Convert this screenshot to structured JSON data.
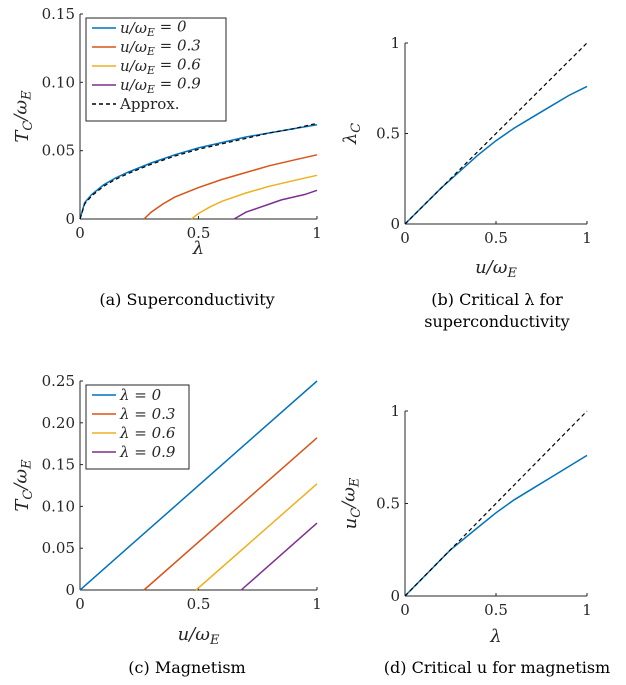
{
  "colors": {
    "blue": "#0072BD",
    "orange": "#D95319",
    "yellow": "#EDB120",
    "purple": "#7E2F8E",
    "axis": "#262626",
    "approx": "#000000"
  },
  "chart_data": [
    {
      "id": "a",
      "type": "line",
      "caption": "(a) Superconductivity",
      "xlabel": "λ",
      "ylabel": "T_C/ω_E",
      "xlim": [
        0,
        1
      ],
      "ylim": [
        0,
        0.15
      ],
      "xticks": [
        0,
        0.5,
        1
      ],
      "xtick_labels": [
        "0",
        "0.5",
        "1"
      ],
      "yticks": [
        0,
        0.05,
        0.1,
        0.15
      ],
      "ytick_labels": [
        "0",
        "0.05",
        "0.10",
        "0.15"
      ],
      "legend_position": "top-left",
      "grid": false,
      "series": [
        {
          "name": "u/ω_E = 0",
          "color": "#0072BD",
          "style": "solid",
          "x": [
            0,
            0.02,
            0.05,
            0.1,
            0.15,
            0.2,
            0.3,
            0.4,
            0.5,
            0.6,
            0.7,
            0.8,
            0.9,
            1.0
          ],
          "y": [
            0,
            0.012,
            0.018,
            0.025,
            0.03,
            0.034,
            0.041,
            0.047,
            0.052,
            0.056,
            0.06,
            0.063,
            0.066,
            0.069
          ]
        },
        {
          "name": "u/ω_E = 0.3",
          "color": "#D95319",
          "style": "solid",
          "x": [
            0.27,
            0.3,
            0.35,
            0.4,
            0.5,
            0.6,
            0.7,
            0.8,
            0.9,
            1.0
          ],
          "y": [
            0,
            0.005,
            0.011,
            0.016,
            0.023,
            0.029,
            0.034,
            0.039,
            0.043,
            0.047
          ]
        },
        {
          "name": "u/ω_E = 0.6",
          "color": "#EDB120",
          "style": "solid",
          "x": [
            0.47,
            0.5,
            0.55,
            0.6,
            0.7,
            0.8,
            0.9,
            1.0
          ],
          "y": [
            0,
            0.004,
            0.009,
            0.013,
            0.019,
            0.024,
            0.028,
            0.032
          ]
        },
        {
          "name": "u/ω_E = 0.9",
          "color": "#7E2F8E",
          "style": "solid",
          "x": [
            0.65,
            0.7,
            0.75,
            0.8,
            0.85,
            0.9,
            0.95,
            1.0
          ],
          "y": [
            0,
            0.005,
            0.008,
            0.011,
            0.014,
            0.016,
            0.018,
            0.021
          ]
        },
        {
          "name": "Approx.",
          "color": "#000000",
          "style": "dashed",
          "x": [
            0,
            0.02,
            0.05,
            0.1,
            0.15,
            0.2,
            0.3,
            0.4,
            0.5,
            0.6,
            0.7,
            0.8,
            0.9,
            1.0
          ],
          "y": [
            0,
            0.011,
            0.017,
            0.024,
            0.029,
            0.033,
            0.04,
            0.046,
            0.051,
            0.055,
            0.059,
            0.063,
            0.066,
            0.07
          ]
        }
      ]
    },
    {
      "id": "b",
      "type": "line",
      "caption_lines": [
        "(b) Critical λ for",
        "superconductivity"
      ],
      "xlabel": "u/ω_E",
      "ylabel": "λ_C",
      "xlim": [
        0,
        1
      ],
      "ylim": [
        0,
        1
      ],
      "xticks": [
        0,
        0.5,
        1
      ],
      "xtick_labels": [
        "0",
        "0.5",
        "1"
      ],
      "yticks": [
        0,
        0.5,
        1
      ],
      "ytick_labels": [
        "0",
        "0.5",
        "1"
      ],
      "grid": false,
      "series": [
        {
          "color": "#0072BD",
          "style": "solid",
          "x": [
            0,
            0.1,
            0.2,
            0.3,
            0.4,
            0.5,
            0.6,
            0.7,
            0.8,
            0.9,
            1.0
          ],
          "y": [
            0,
            0.1,
            0.2,
            0.29,
            0.38,
            0.46,
            0.53,
            0.59,
            0.65,
            0.71,
            0.76
          ]
        },
        {
          "color": "#000000",
          "style": "dashed",
          "x": [
            0,
            1
          ],
          "y": [
            0,
            1
          ]
        }
      ]
    },
    {
      "id": "c",
      "type": "line",
      "caption": "(c) Magnetism",
      "xlabel": "u/ω_E",
      "ylabel": "T_C/ω_E",
      "xlim": [
        0,
        1
      ],
      "ylim": [
        0,
        0.25
      ],
      "xticks": [
        0,
        0.5,
        1
      ],
      "xtick_labels": [
        "0",
        "0.5",
        "1"
      ],
      "yticks": [
        0,
        0.05,
        0.1,
        0.15,
        0.2,
        0.25
      ],
      "ytick_labels": [
        "0",
        "0.05",
        "0.10",
        "0.15",
        "0.20",
        "0.25"
      ],
      "legend_position": "top-left",
      "grid": false,
      "series": [
        {
          "name": "λ = 0",
          "color": "#0072BD",
          "style": "solid",
          "x": [
            0,
            1
          ],
          "y": [
            0,
            0.25
          ]
        },
        {
          "name": "λ = 0.3",
          "color": "#D95319",
          "style": "solid",
          "x": [
            0.27,
            1
          ],
          "y": [
            0,
            0.182
          ]
        },
        {
          "name": "λ = 0.6",
          "color": "#EDB120",
          "style": "solid",
          "x": [
            0.49,
            1
          ],
          "y": [
            0,
            0.127
          ]
        },
        {
          "name": "λ = 0.9",
          "color": "#7E2F8E",
          "style": "solid",
          "x": [
            0.68,
            1
          ],
          "y": [
            0,
            0.08
          ]
        }
      ]
    },
    {
      "id": "d",
      "type": "line",
      "caption": "(d) Critical u for magnetism",
      "xlabel": "λ",
      "ylabel": "u_C/ω_E",
      "xlim": [
        0,
        1
      ],
      "ylim": [
        0,
        1
      ],
      "xticks": [
        0,
        0.5,
        1
      ],
      "xtick_labels": [
        "0",
        "0.5",
        "1"
      ],
      "yticks": [
        0,
        0.5,
        1
      ],
      "ytick_labels": [
        "0",
        "0.5",
        "1"
      ],
      "grid": false,
      "series": [
        {
          "color": "#0072BD",
          "style": "solid",
          "x": [
            0,
            0.1,
            0.2,
            0.25,
            0.3,
            0.4,
            0.5,
            0.6,
            0.7,
            0.8,
            0.9,
            1.0
          ],
          "y": [
            0,
            0.1,
            0.2,
            0.25,
            0.29,
            0.37,
            0.45,
            0.52,
            0.58,
            0.64,
            0.7,
            0.76
          ]
        },
        {
          "color": "#000000",
          "style": "dashed",
          "x": [
            0,
            1
          ],
          "y": [
            0,
            1
          ]
        }
      ]
    }
  ]
}
